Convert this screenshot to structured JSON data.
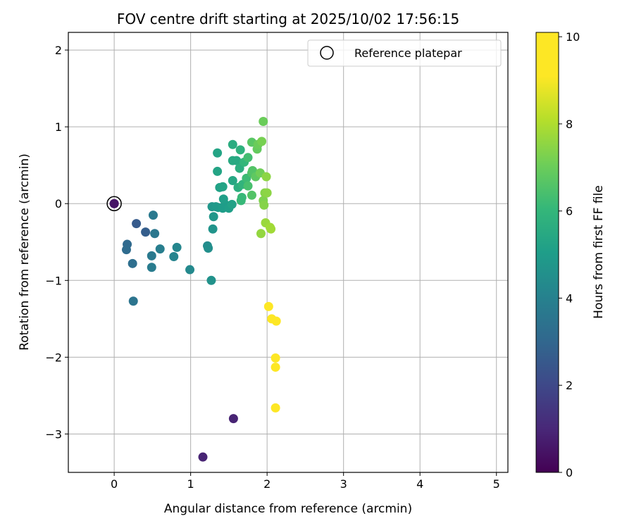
{
  "chart_data": {
    "type": "scatter",
    "title": "FOV centre drift starting at 2025/10/02 17:56:15",
    "xlabel": "Angular distance from reference (arcmin)",
    "ylabel": "Rotation from reference (arcmin)",
    "xlim": [
      -0.6,
      5.15
    ],
    "ylim": [
      -3.5,
      2.23
    ],
    "xticks": [
      0,
      1,
      2,
      3,
      4,
      5
    ],
    "yticks": [
      -3,
      -2,
      -1,
      0,
      1,
      2
    ],
    "grid": true,
    "legend": {
      "position": "top-right",
      "entries": [
        "Reference platepar"
      ]
    },
    "reference": {
      "x": 0,
      "y": 0,
      "hours": 0.5
    },
    "colorbar": {
      "label": "Hours from first FF file",
      "min": 0,
      "max": 10.1,
      "ticks": [
        0,
        2,
        4,
        6,
        8,
        10
      ],
      "colormap": "viridis"
    },
    "series": [
      {
        "name": "FOV centre drift",
        "points": [
          {
            "x": 0.0,
            "y": 0.0,
            "h": 0.5
          },
          {
            "x": 1.56,
            "y": -2.8,
            "h": 0.9
          },
          {
            "x": 1.16,
            "y": -3.3,
            "h": 0.9
          },
          {
            "x": 0.29,
            "y": -0.26,
            "h": 2.6
          },
          {
            "x": 0.41,
            "y": -0.37,
            "h": 2.7
          },
          {
            "x": 0.17,
            "y": -0.53,
            "h": 3.1
          },
          {
            "x": 0.16,
            "y": -0.6,
            "h": 3.2
          },
          {
            "x": 0.24,
            "y": -0.78,
            "h": 3.3
          },
          {
            "x": 0.25,
            "y": -1.27,
            "h": 3.5
          },
          {
            "x": 0.51,
            "y": -0.15,
            "h": 3.7
          },
          {
            "x": 0.53,
            "y": -0.39,
            "h": 3.6
          },
          {
            "x": 0.49,
            "y": -0.68,
            "h": 3.7
          },
          {
            "x": 0.49,
            "y": -0.83,
            "h": 3.8
          },
          {
            "x": 0.6,
            "y": -0.59,
            "h": 3.9
          },
          {
            "x": 0.78,
            "y": -0.69,
            "h": 4.1
          },
          {
            "x": 0.82,
            "y": -0.57,
            "h": 4.2
          },
          {
            "x": 0.99,
            "y": -0.86,
            "h": 4.3
          },
          {
            "x": 1.22,
            "y": -0.55,
            "h": 4.4
          },
          {
            "x": 1.23,
            "y": -0.58,
            "h": 4.5
          },
          {
            "x": 1.27,
            "y": -1.0,
            "h": 4.6
          },
          {
            "x": 1.29,
            "y": -0.33,
            "h": 4.7
          },
          {
            "x": 1.3,
            "y": -0.17,
            "h": 4.8
          },
          {
            "x": 1.28,
            "y": -0.04,
            "h": 4.8
          },
          {
            "x": 1.33,
            "y": -0.04,
            "h": 4.9
          },
          {
            "x": 1.36,
            "y": -0.05,
            "h": 4.9
          },
          {
            "x": 1.42,
            "y": -0.06,
            "h": 5.0
          },
          {
            "x": 1.45,
            "y": -0.01,
            "h": 5.0
          },
          {
            "x": 1.43,
            "y": 0.06,
            "h": 5.1
          },
          {
            "x": 1.5,
            "y": -0.06,
            "h": 5.1
          },
          {
            "x": 1.54,
            "y": -0.01,
            "h": 5.2
          },
          {
            "x": 1.38,
            "y": 0.21,
            "h": 5.2
          },
          {
            "x": 1.42,
            "y": 0.22,
            "h": 5.3
          },
          {
            "x": 1.35,
            "y": 0.42,
            "h": 5.3
          },
          {
            "x": 1.35,
            "y": 0.66,
            "h": 5.3
          },
          {
            "x": 1.55,
            "y": 0.3,
            "h": 5.4
          },
          {
            "x": 1.55,
            "y": 0.56,
            "h": 5.5
          },
          {
            "x": 1.6,
            "y": 0.56,
            "h": 5.5
          },
          {
            "x": 1.55,
            "y": 0.77,
            "h": 5.6
          },
          {
            "x": 1.62,
            "y": 0.21,
            "h": 5.7
          },
          {
            "x": 1.64,
            "y": 0.46,
            "h": 5.7
          },
          {
            "x": 1.65,
            "y": 0.7,
            "h": 5.8
          },
          {
            "x": 1.68,
            "y": 0.25,
            "h": 5.9
          },
          {
            "x": 1.7,
            "y": 0.54,
            "h": 6.0
          },
          {
            "x": 1.66,
            "y": 0.04,
            "h": 6.1
          },
          {
            "x": 1.67,
            "y": 0.08,
            "h": 6.1
          },
          {
            "x": 1.73,
            "y": 0.33,
            "h": 6.2
          },
          {
            "x": 1.75,
            "y": 0.6,
            "h": 6.3
          },
          {
            "x": 1.75,
            "y": 0.23,
            "h": 6.4
          },
          {
            "x": 1.8,
            "y": 0.4,
            "h": 6.5
          },
          {
            "x": 1.81,
            "y": 0.43,
            "h": 6.6
          },
          {
            "x": 1.8,
            "y": 0.11,
            "h": 6.6
          },
          {
            "x": 1.8,
            "y": 0.8,
            "h": 6.7
          },
          {
            "x": 1.85,
            "y": 0.35,
            "h": 6.8
          },
          {
            "x": 1.87,
            "y": 0.71,
            "h": 6.9
          },
          {
            "x": 1.88,
            "y": 0.77,
            "h": 7.0
          },
          {
            "x": 1.91,
            "y": 0.4,
            "h": 7.1
          },
          {
            "x": 1.93,
            "y": 0.81,
            "h": 7.2
          },
          {
            "x": 1.95,
            "y": 1.07,
            "h": 7.0
          },
          {
            "x": 1.95,
            "y": 0.04,
            "h": 7.3
          },
          {
            "x": 1.96,
            "y": -0.02,
            "h": 7.4
          },
          {
            "x": 1.97,
            "y": 0.14,
            "h": 7.4
          },
          {
            "x": 2.0,
            "y": 0.14,
            "h": 7.5
          },
          {
            "x": 1.99,
            "y": 0.35,
            "h": 7.5
          },
          {
            "x": 1.92,
            "y": -0.39,
            "h": 7.6
          },
          {
            "x": 1.98,
            "y": -0.25,
            "h": 7.7
          },
          {
            "x": 2.04,
            "y": -0.31,
            "h": 7.8
          },
          {
            "x": 2.05,
            "y": -0.33,
            "h": 7.8
          },
          {
            "x": 2.02,
            "y": -1.34,
            "h": 9.9
          },
          {
            "x": 2.06,
            "y": -1.5,
            "h": 9.9
          },
          {
            "x": 2.12,
            "y": -1.53,
            "h": 10.0
          },
          {
            "x": 2.11,
            "y": -2.01,
            "h": 10.0
          },
          {
            "x": 2.11,
            "y": -2.13,
            "h": 10.0
          },
          {
            "x": 2.11,
            "y": -2.66,
            "h": 10.1
          }
        ]
      }
    ]
  }
}
